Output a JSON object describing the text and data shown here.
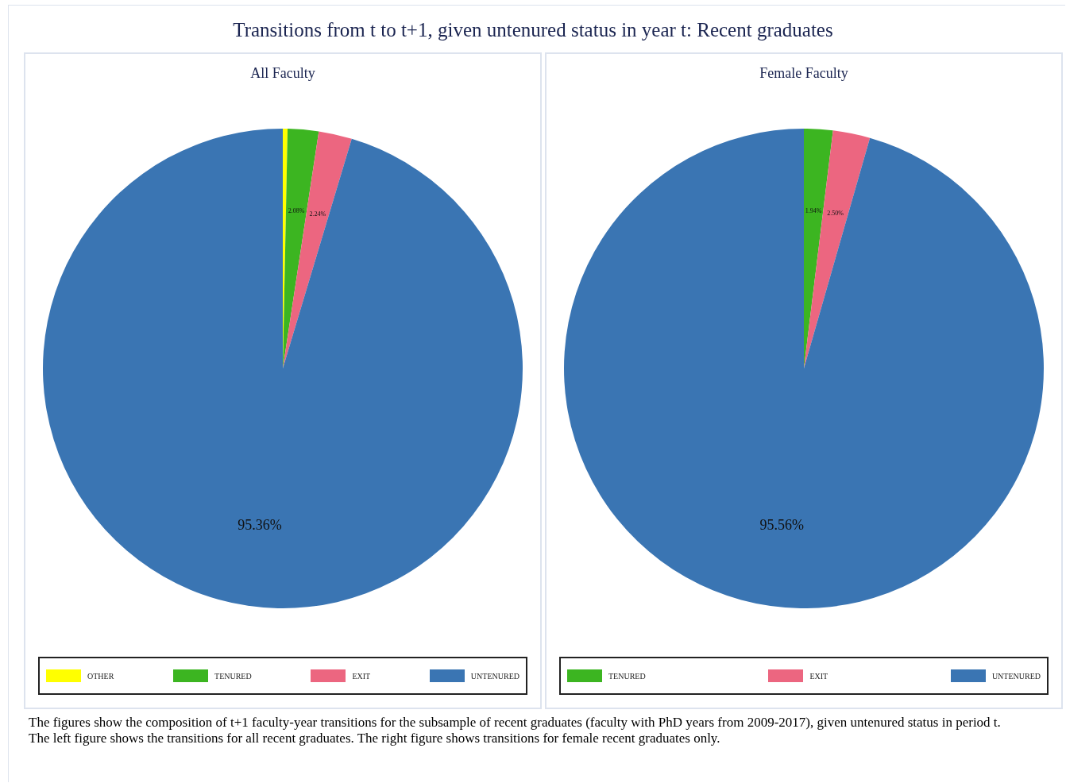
{
  "chart_data": [
    {
      "type": "pie",
      "title": "Transitions from t to t+1, given untenured status in year t: Recent graduates",
      "subtitle": "All Faculty",
      "categories": [
        "OTHER",
        "TENURED",
        "EXIT",
        "UNTENURED"
      ],
      "values": [
        0.32,
        2.08,
        2.24,
        95.36
      ],
      "colors": [
        "#ffff00",
        "#3cb521",
        "#ec6680",
        "#3a75b3"
      ],
      "value_labels": [
        null,
        "2.08%",
        "2.24%",
        "95.36%"
      ],
      "legend": "bottom",
      "annotations": [
        "The figures show the composition of t+1 faculty-year transitions for the subsample of recent graduates (faculty with PhD years from 2009-2017), given untenured status in period t.",
        "The left figure shows the transitions for all recent graduates.  The right figure shows transitions for female recent graduates only."
      ]
    },
    {
      "type": "pie",
      "subtitle": "Female Faculty",
      "categories": [
        "TENURED",
        "EXIT",
        "UNTENURED"
      ],
      "values": [
        1.94,
        2.5,
        95.56
      ],
      "colors": [
        "#3cb521",
        "#ec6680",
        "#3a75b3"
      ],
      "value_labels": [
        "1.94%",
        "2.50%",
        "95.56%"
      ],
      "legend": "bottom"
    }
  ]
}
